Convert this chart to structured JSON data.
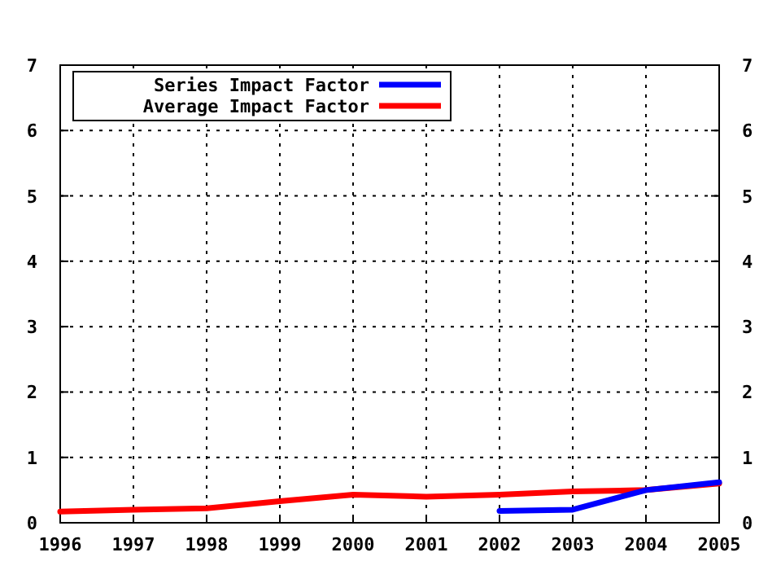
{
  "chart_data": {
    "type": "line",
    "x": [
      1996,
      1997,
      1998,
      1999,
      2000,
      2001,
      2002,
      2003,
      2004,
      2005
    ],
    "series": [
      {
        "name": "Series Impact Factor",
        "color": "#0000ff",
        "values": [
          null,
          null,
          null,
          null,
          null,
          null,
          0.18,
          0.2,
          0.5,
          0.62
        ]
      },
      {
        "name": "Average Impact Factor",
        "color": "#ff0000",
        "values": [
          0.17,
          0.2,
          0.22,
          0.33,
          0.43,
          0.4,
          0.43,
          0.48,
          0.5,
          0.6
        ]
      }
    ],
    "xlim": [
      1996,
      2005
    ],
    "xticks": [
      1996,
      1997,
      1998,
      1999,
      2000,
      2001,
      2002,
      2003,
      2004,
      2005
    ],
    "ylim": [
      0,
      7
    ],
    "yticks": [
      0,
      1,
      2,
      3,
      4,
      5,
      6,
      7
    ],
    "y2lim": [
      0,
      7
    ],
    "y2ticks": [
      0,
      1,
      2,
      3,
      4,
      5,
      6,
      7
    ],
    "grid": true,
    "legend": "top left",
    "marker": "none",
    "line_style": "solid"
  }
}
